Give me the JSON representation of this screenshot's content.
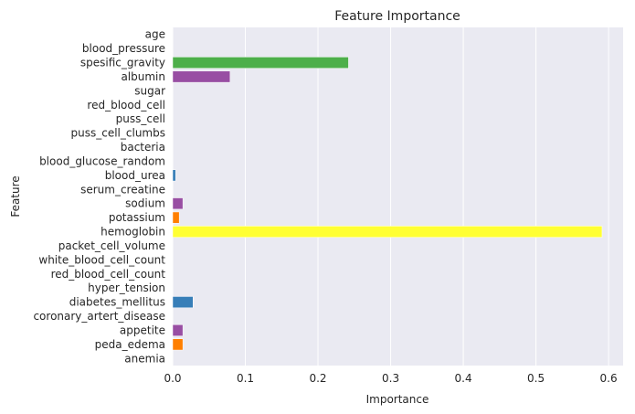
{
  "chart_data": {
    "type": "bar",
    "orientation": "horizontal",
    "title": "Feature Importance",
    "xlabel": "Importance",
    "ylabel": "Feature",
    "xlim": [
      0,
      0.62
    ],
    "xticks": [
      0.0,
      0.1,
      0.2,
      0.3,
      0.4,
      0.5,
      0.6
    ],
    "xtick_labels": [
      "0.0",
      "0.1",
      "0.2",
      "0.3",
      "0.4",
      "0.5",
      "0.6"
    ],
    "grid": true,
    "background": "#eaeaf2",
    "categories": [
      "age",
      "blood_pressure",
      "spesific_gravity",
      "albumin",
      "sugar",
      "red_blood_cell",
      "puss_cell",
      "puss_cell_clumbs",
      "bacteria",
      "blood_glucose_random",
      "blood_urea",
      "serum_creatine",
      "sodium",
      "potassium",
      "hemoglobin",
      "packet_cell_volume",
      "white_blood_cell_count",
      "red_blood_cell_count",
      "hyper_tension",
      "diabetes_mellitus",
      "coronary_artert_disease",
      "appetite",
      "peda_edema",
      "anemia"
    ],
    "values": [
      0.0,
      0.0,
      0.242,
      0.079,
      0.0,
      0.0,
      0.0,
      0.0,
      0.0,
      0.0,
      0.004,
      0.0,
      0.014,
      0.009,
      0.591,
      0.0,
      0.0,
      0.0,
      0.0,
      0.028,
      0.0,
      0.014,
      0.014,
      0.0
    ],
    "colors": [
      "#e41a1c",
      "#377eb8",
      "#4daf4a",
      "#984ea3",
      "#ff7f00",
      "#ffff33",
      "#a65628",
      "#f781bf",
      "#999999",
      "#e41a1c",
      "#377eb8",
      "#4daf4a",
      "#984ea3",
      "#ff7f00",
      "#ffff33",
      "#a65628",
      "#f781bf",
      "#999999",
      "#e41a1c",
      "#377eb8",
      "#4daf4a",
      "#984ea3",
      "#ff7f00",
      "#ffff33"
    ]
  }
}
